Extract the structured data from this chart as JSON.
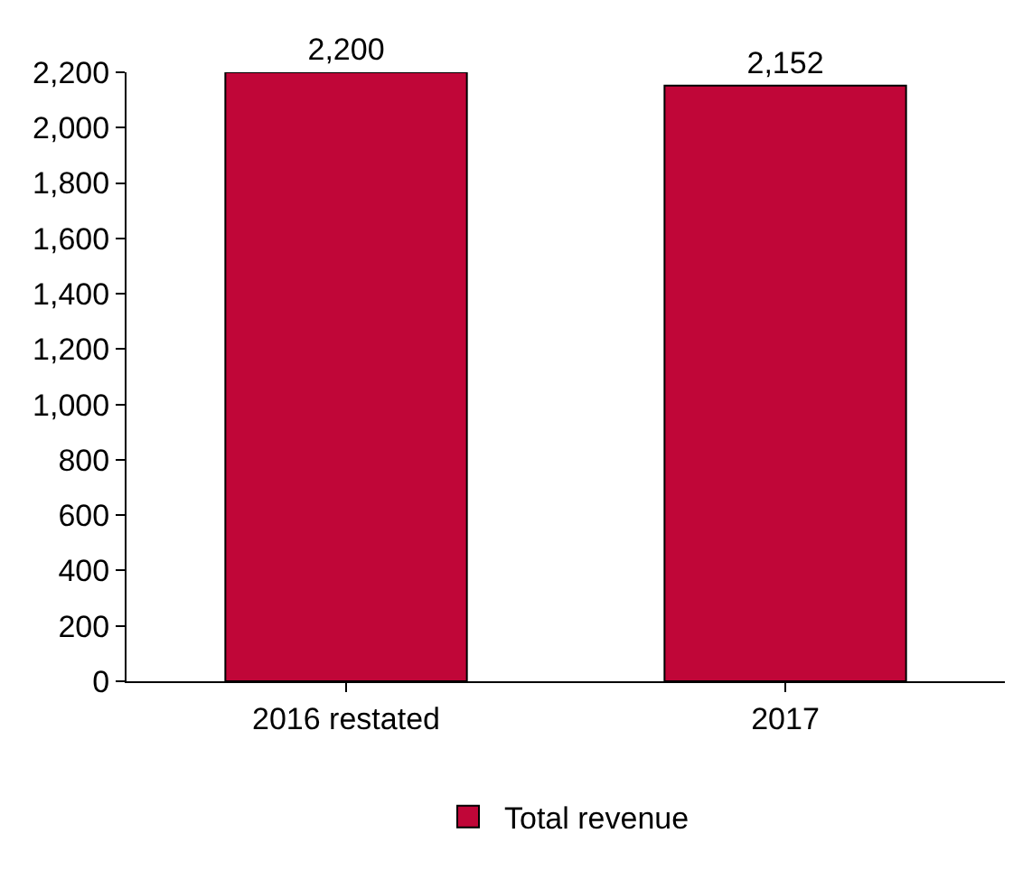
{
  "chart_data": {
    "type": "bar",
    "categories": [
      "2016 restated",
      "2017"
    ],
    "series": [
      {
        "name": "Total revenue",
        "color": "#c00638",
        "values": [
          2200,
          2152
        ],
        "value_labels": [
          "2,200",
          "2,152"
        ]
      }
    ],
    "ylim": [
      0,
      2200
    ],
    "yticks": [
      {
        "value": 0,
        "label": "0"
      },
      {
        "value": 200,
        "label": "200"
      },
      {
        "value": 400,
        "label": "400"
      },
      {
        "value": 600,
        "label": "600"
      },
      {
        "value": 800,
        "label": "800"
      },
      {
        "value": 1000,
        "label": "1,000"
      },
      {
        "value": 1200,
        "label": "1,200"
      },
      {
        "value": 1400,
        "label": "1,400"
      },
      {
        "value": 1600,
        "label": "1,600"
      },
      {
        "value": 1800,
        "label": "1,800"
      },
      {
        "value": 2000,
        "label": "2,000"
      },
      {
        "value": 2200,
        "label": "2,200"
      }
    ],
    "grid": false,
    "legend": "bottom"
  }
}
